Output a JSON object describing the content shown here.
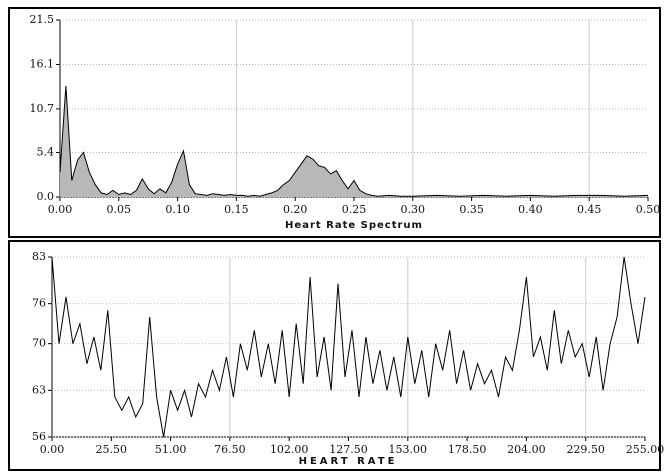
{
  "chart_data": [
    {
      "type": "area",
      "x_label": "Heart Rate Spectrum",
      "x": [
        0,
        0.005,
        0.01,
        0.015,
        0.02,
        0.025,
        0.03,
        0.035,
        0.04,
        0.045,
        0.05,
        0.055,
        0.06,
        0.065,
        0.07,
        0.075,
        0.08,
        0.085,
        0.09,
        0.095,
        0.1,
        0.105,
        0.11,
        0.115,
        0.12,
        0.125,
        0.13,
        0.135,
        0.14,
        0.145,
        0.15,
        0.155,
        0.16,
        0.165,
        0.17,
        0.175,
        0.18,
        0.185,
        0.19,
        0.195,
        0.2,
        0.205,
        0.21,
        0.215,
        0.22,
        0.225,
        0.23,
        0.235,
        0.24,
        0.245,
        0.25,
        0.255,
        0.26,
        0.265,
        0.27,
        0.28,
        0.29,
        0.3,
        0.32,
        0.34,
        0.36,
        0.38,
        0.4,
        0.42,
        0.44,
        0.46,
        0.48,
        0.5
      ],
      "values": [
        3.0,
        13.5,
        2.0,
        4.5,
        5.4,
        3.0,
        1.5,
        0.5,
        0.3,
        0.8,
        0.3,
        0.5,
        0.3,
        0.8,
        2.2,
        1.0,
        0.4,
        1.0,
        0.5,
        1.8,
        4.0,
        5.6,
        1.5,
        0.4,
        0.3,
        0.2,
        0.4,
        0.3,
        0.2,
        0.3,
        0.2,
        0.2,
        0.1,
        0.2,
        0.1,
        0.3,
        0.5,
        0.8,
        1.5,
        2.0,
        3.0,
        4.0,
        5.0,
        4.6,
        3.8,
        3.6,
        2.8,
        3.2,
        2.0,
        1.0,
        2.0,
        0.8,
        0.4,
        0.2,
        0.1,
        0.2,
        0.1,
        0.1,
        0.2,
        0.1,
        0.2,
        0.1,
        0.2,
        0.1,
        0.2,
        0.2,
        0.1,
        0.2
      ],
      "color": "#b8b8b8",
      "xlim": [
        0,
        0.5
      ],
      "xticks": [
        {
          "value": 0,
          "label": "0.00"
        },
        0.05,
        {
          "value": 0.1,
          "label": "0.10"
        },
        0.15,
        {
          "value": 0.2,
          "label": "0.20"
        },
        0.25,
        {
          "value": 0.3,
          "label": "0.30"
        },
        0.35,
        {
          "value": 0.4,
          "label": "0.40"
        },
        0.45,
        {
          "value": 0.5,
          "label": "0.50"
        }
      ],
      "ylim": [
        0,
        21.5
      ],
      "yticks": [
        {
          "value": 0,
          "label": "0.0"
        },
        5.4,
        10.7,
        16.1,
        21.5
      ],
      "grid": true
    },
    {
      "type": "line",
      "x_label": "HEART RATE",
      "x": [
        0,
        3,
        6,
        9,
        12,
        15,
        18,
        21,
        24,
        27,
        30,
        33,
        36,
        39,
        42,
        45,
        48,
        51,
        54,
        57,
        60,
        63,
        66,
        69,
        72,
        75,
        78,
        81,
        84,
        87,
        90,
        93,
        96,
        99,
        102,
        105,
        108,
        111,
        114,
        117,
        120,
        123,
        126,
        129,
        132,
        135,
        138,
        141,
        144,
        147,
        150,
        153,
        156,
        159,
        162,
        165,
        168,
        171,
        174,
        177,
        180,
        183,
        186,
        189,
        192,
        195,
        198,
        201,
        204,
        207,
        210,
        213,
        216,
        219,
        222,
        225,
        228,
        231,
        234,
        237,
        240,
        243,
        246,
        249,
        252,
        255
      ],
      "values": [
        83,
        70,
        77,
        70,
        73,
        67,
        71,
        66,
        75,
        62,
        60,
        62,
        59,
        61,
        74,
        62,
        56,
        63,
        60,
        63,
        59,
        64,
        62,
        66,
        63,
        68,
        62,
        70,
        66,
        72,
        65,
        70,
        64,
        72,
        62,
        73,
        64,
        80,
        65,
        71,
        63,
        79,
        65,
        72,
        62,
        71,
        64,
        69,
        63,
        68,
        62,
        71,
        64,
        69,
        62,
        70,
        66,
        72,
        64,
        69,
        63,
        67,
        64,
        66,
        62,
        68,
        66,
        72,
        80,
        68,
        71,
        66,
        75,
        67,
        72,
        68,
        70,
        65,
        71,
        63,
        70,
        74,
        83,
        76,
        70,
        77
      ],
      "color": "#000000",
      "xlim": [
        0,
        255
      ],
      "xticks": [
        {
          "value": 0,
          "label": "0.00"
        },
        {
          "value": 25.5,
          "label": "25.50"
        },
        {
          "value": 51,
          "label": "51.00"
        },
        {
          "value": 76.5,
          "label": "76.50"
        },
        {
          "value": 102,
          "label": "102.00"
        },
        {
          "value": 127.5,
          "label": "127.50"
        },
        {
          "value": 153,
          "label": "153.00"
        },
        {
          "value": 178.5,
          "label": "178.50"
        },
        {
          "value": 204,
          "label": "204.00"
        },
        {
          "value": 229.5,
          "label": "229.50"
        },
        {
          "value": 255,
          "label": "255.00"
        }
      ],
      "ylim": [
        56,
        83
      ],
      "yticks": [
        56,
        63,
        70,
        76,
        83
      ],
      "grid": true
    }
  ]
}
